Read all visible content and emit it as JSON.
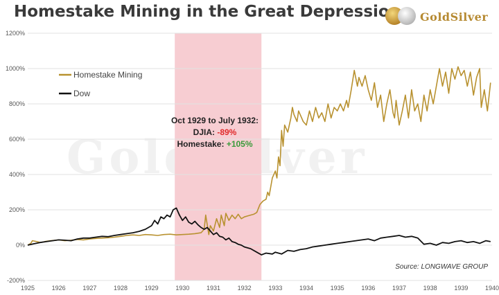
{
  "chart_data": {
    "type": "line",
    "title": "Homestake Mining in the Great Depression",
    "brand": "GoldSilver",
    "watermark": "GoldSilver",
    "source": "Source: LONGWAVE GROUP",
    "xlabel": "",
    "ylabel": "",
    "xlim": [
      1925,
      1940
    ],
    "ylim": [
      -200,
      1200
    ],
    "y_ticks": [
      1200,
      1000,
      800,
      600,
      400,
      200,
      0,
      -200
    ],
    "y_tick_labels": [
      "1200%",
      "1000%",
      "800%",
      "600%",
      "400%",
      "200%",
      "0%",
      "-200%"
    ],
    "x_ticks": [
      1925,
      1926,
      1927,
      1928,
      1929,
      1930,
      1931,
      1932,
      1933,
      1934,
      1935,
      1936,
      1937,
      1938,
      1939,
      1940
    ],
    "x_tick_labels": [
      "1925",
      "1926",
      "1927",
      "1928",
      "1929",
      "1930",
      "1931",
      "1932",
      "1933",
      "1934",
      "1935",
      "1936",
      "1937",
      "1938",
      "1939",
      "1940"
    ],
    "grid": "horizontal",
    "legend": "top-left",
    "highlight": {
      "from": 1929.75,
      "to": 1932.55,
      "color": "#f7cdd2"
    },
    "annotation": {
      "line1": "Oct 1929 to July 1932:",
      "djia_label": "DJIA: ",
      "djia_value": "-89%",
      "hm_label": "Homestake: ",
      "hm_value": "+105%",
      "neg_color": "#e02a2a",
      "pos_color": "#3a9a3a"
    },
    "series": [
      {
        "name": "Homestake Mining",
        "color": "#b8912f",
        "x": [
          1925.0,
          1925.1,
          1925.15,
          1925.3,
          1925.4,
          1925.5,
          1925.6,
          1925.75,
          1925.9,
          1926.0,
          1926.2,
          1926.4,
          1926.6,
          1926.8,
          1927.0,
          1927.2,
          1927.4,
          1927.6,
          1927.8,
          1928.0,
          1928.2,
          1928.4,
          1928.6,
          1928.8,
          1929.0,
          1929.2,
          1929.4,
          1929.6,
          1929.8,
          1930.0,
          1930.2,
          1930.4,
          1930.6,
          1930.7,
          1930.75,
          1930.85,
          1930.9,
          1931.0,
          1931.1,
          1931.2,
          1931.25,
          1931.35,
          1931.4,
          1931.5,
          1931.6,
          1931.7,
          1931.8,
          1931.9,
          1932.0,
          1932.1,
          1932.2,
          1932.3,
          1932.4,
          1932.5,
          1932.6,
          1932.7,
          1932.75,
          1932.8,
          1932.9,
          1933.0,
          1933.05,
          1933.1,
          1933.15,
          1933.2,
          1933.25,
          1933.3,
          1933.4,
          1933.5,
          1933.55,
          1933.6,
          1933.7,
          1933.75,
          1933.85,
          1933.9,
          1934.0,
          1934.1,
          1934.2,
          1934.3,
          1934.4,
          1934.5,
          1934.6,
          1934.7,
          1934.8,
          1934.9,
          1935.0,
          1935.1,
          1935.2,
          1935.3,
          1935.35,
          1935.45,
          1935.55,
          1935.65,
          1935.7,
          1935.8,
          1935.9,
          1936.0,
          1936.1,
          1936.2,
          1936.3,
          1936.4,
          1936.5,
          1936.6,
          1936.7,
          1936.8,
          1936.85,
          1936.9,
          1937.0,
          1937.1,
          1937.2,
          1937.3,
          1937.4,
          1937.5,
          1937.6,
          1937.7,
          1937.8,
          1937.9,
          1938.0,
          1938.1,
          1938.2,
          1938.3,
          1938.4,
          1938.5,
          1938.6,
          1938.7,
          1938.8,
          1938.9,
          1939.0,
          1939.1,
          1939.2,
          1939.3,
          1939.4,
          1939.5,
          1939.6,
          1939.65,
          1939.75,
          1939.85,
          1939.95
        ],
        "values": [
          0,
          10,
          25,
          20,
          15,
          18,
          22,
          25,
          28,
          30,
          25,
          28,
          32,
          30,
          35,
          38,
          40,
          42,
          45,
          50,
          55,
          58,
          55,
          60,
          58,
          55,
          60,
          62,
          58,
          60,
          62,
          65,
          70,
          90,
          170,
          60,
          110,
          80,
          150,
          100,
          170,
          110,
          180,
          140,
          170,
          150,
          175,
          150,
          160,
          165,
          170,
          175,
          185,
          230,
          250,
          260,
          300,
          280,
          380,
          420,
          380,
          500,
          450,
          650,
          560,
          680,
          640,
          720,
          780,
          740,
          700,
          760,
          720,
          700,
          680,
          760,
          700,
          780,
          720,
          750,
          700,
          800,
          720,
          780,
          760,
          800,
          760,
          820,
          780,
          880,
          990,
          900,
          950,
          900,
          960,
          880,
          820,
          920,
          780,
          850,
          700,
          800,
          880,
          750,
          720,
          820,
          680,
          760,
          850,
          720,
          880,
          760,
          800,
          700,
          850,
          760,
          880,
          800,
          900,
          1000,
          900,
          980,
          860,
          1000,
          940,
          1010,
          960,
          990,
          900,
          980,
          850,
          950,
          1000,
          780,
          880,
          760,
          920
        ]
      },
      {
        "name": "Dow",
        "color": "#111111",
        "x": [
          1925.0,
          1925.2,
          1925.4,
          1925.6,
          1925.8,
          1926.0,
          1926.2,
          1926.4,
          1926.6,
          1926.8,
          1927.0,
          1927.2,
          1927.4,
          1927.6,
          1927.8,
          1928.0,
          1928.2,
          1928.4,
          1928.6,
          1928.8,
          1929.0,
          1929.1,
          1929.2,
          1929.3,
          1929.4,
          1929.5,
          1929.6,
          1929.7,
          1929.8,
          1929.9,
          1930.0,
          1930.1,
          1930.2,
          1930.3,
          1930.4,
          1930.5,
          1930.6,
          1930.7,
          1930.8,
          1930.9,
          1931.0,
          1931.1,
          1931.2,
          1931.3,
          1931.4,
          1931.5,
          1931.6,
          1931.7,
          1931.8,
          1931.9,
          1932.0,
          1932.2,
          1932.4,
          1932.55,
          1932.7,
          1932.9,
          1933.0,
          1933.2,
          1933.4,
          1933.6,
          1933.8,
          1934.0,
          1934.2,
          1934.4,
          1934.6,
          1934.8,
          1935.0,
          1935.2,
          1935.4,
          1935.6,
          1935.8,
          1936.0,
          1936.2,
          1936.4,
          1936.6,
          1936.8,
          1937.0,
          1937.2,
          1937.4,
          1937.6,
          1937.8,
          1938.0,
          1938.2,
          1938.4,
          1938.6,
          1938.8,
          1939.0,
          1939.2,
          1939.4,
          1939.6,
          1939.8,
          1939.95
        ],
        "values": [
          0,
          8,
          15,
          20,
          25,
          30,
          28,
          25,
          35,
          40,
          40,
          45,
          50,
          48,
          55,
          60,
          65,
          70,
          78,
          90,
          110,
          140,
          120,
          160,
          150,
          170,
          160,
          200,
          210,
          170,
          140,
          160,
          130,
          120,
          135,
          115,
          100,
          90,
          100,
          80,
          60,
          70,
          50,
          45,
          30,
          40,
          20,
          15,
          5,
          0,
          -10,
          -20,
          -40,
          -55,
          -45,
          -50,
          -40,
          -50,
          -30,
          -35,
          -25,
          -20,
          -10,
          -5,
          0,
          5,
          10,
          15,
          20,
          25,
          30,
          35,
          25,
          40,
          45,
          50,
          55,
          45,
          50,
          40,
          5,
          10,
          0,
          15,
          10,
          20,
          25,
          15,
          20,
          10,
          25,
          20
        ]
      }
    ]
  }
}
